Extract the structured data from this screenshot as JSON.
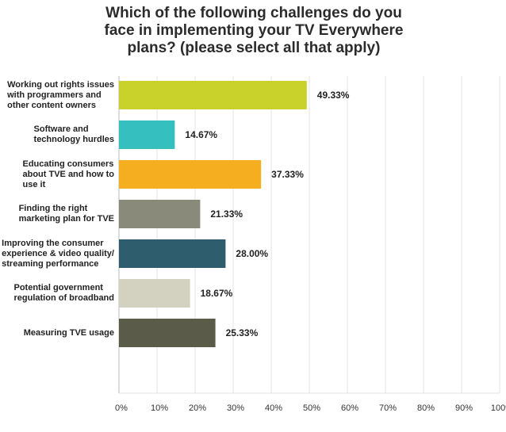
{
  "title_lines": [
    "Which of the following challenges do you",
    "face in implementing your TV Everywhere",
    "plans? (please select all that apply)"
  ],
  "chart_data": {
    "type": "bar",
    "orientation": "horizontal",
    "title": "Which of the following challenges do you face in implementing your TV Everywhere plans? (please select all that apply)",
    "categories": [
      "Working out rights issues\nwith programmers and\nother content owners",
      "Software and\ntechnology hurdles",
      "Educating consumers\nabout TVE and how to\nuse it",
      "Finding the right\nmarketing plan for TVE",
      "Improving the consumer\nexperience & video quality/\nstreaming performance",
      "Potential government\nregulation of broadband",
      "Measuring TVE usage"
    ],
    "values": [
      49.33,
      14.67,
      37.33,
      21.33,
      28.0,
      18.67,
      25.33
    ],
    "value_labels": [
      "49.33%",
      "14.67%",
      "37.33%",
      "21.33%",
      "28.00%",
      "18.67%",
      "25.33%"
    ],
    "bar_colors": [
      "#c9d22b",
      "#35bfbf",
      "#f6ae21",
      "#8a8a7a",
      "#2e5e6e",
      "#d3d1c0",
      "#5a5b49"
    ],
    "xlim": [
      0,
      100
    ],
    "x_ticks": [
      "0%",
      "10%",
      "20%",
      "30%",
      "40%",
      "50%",
      "60%",
      "70%",
      "80%",
      "90%",
      "100%"
    ],
    "grid": true,
    "legend": "none"
  }
}
